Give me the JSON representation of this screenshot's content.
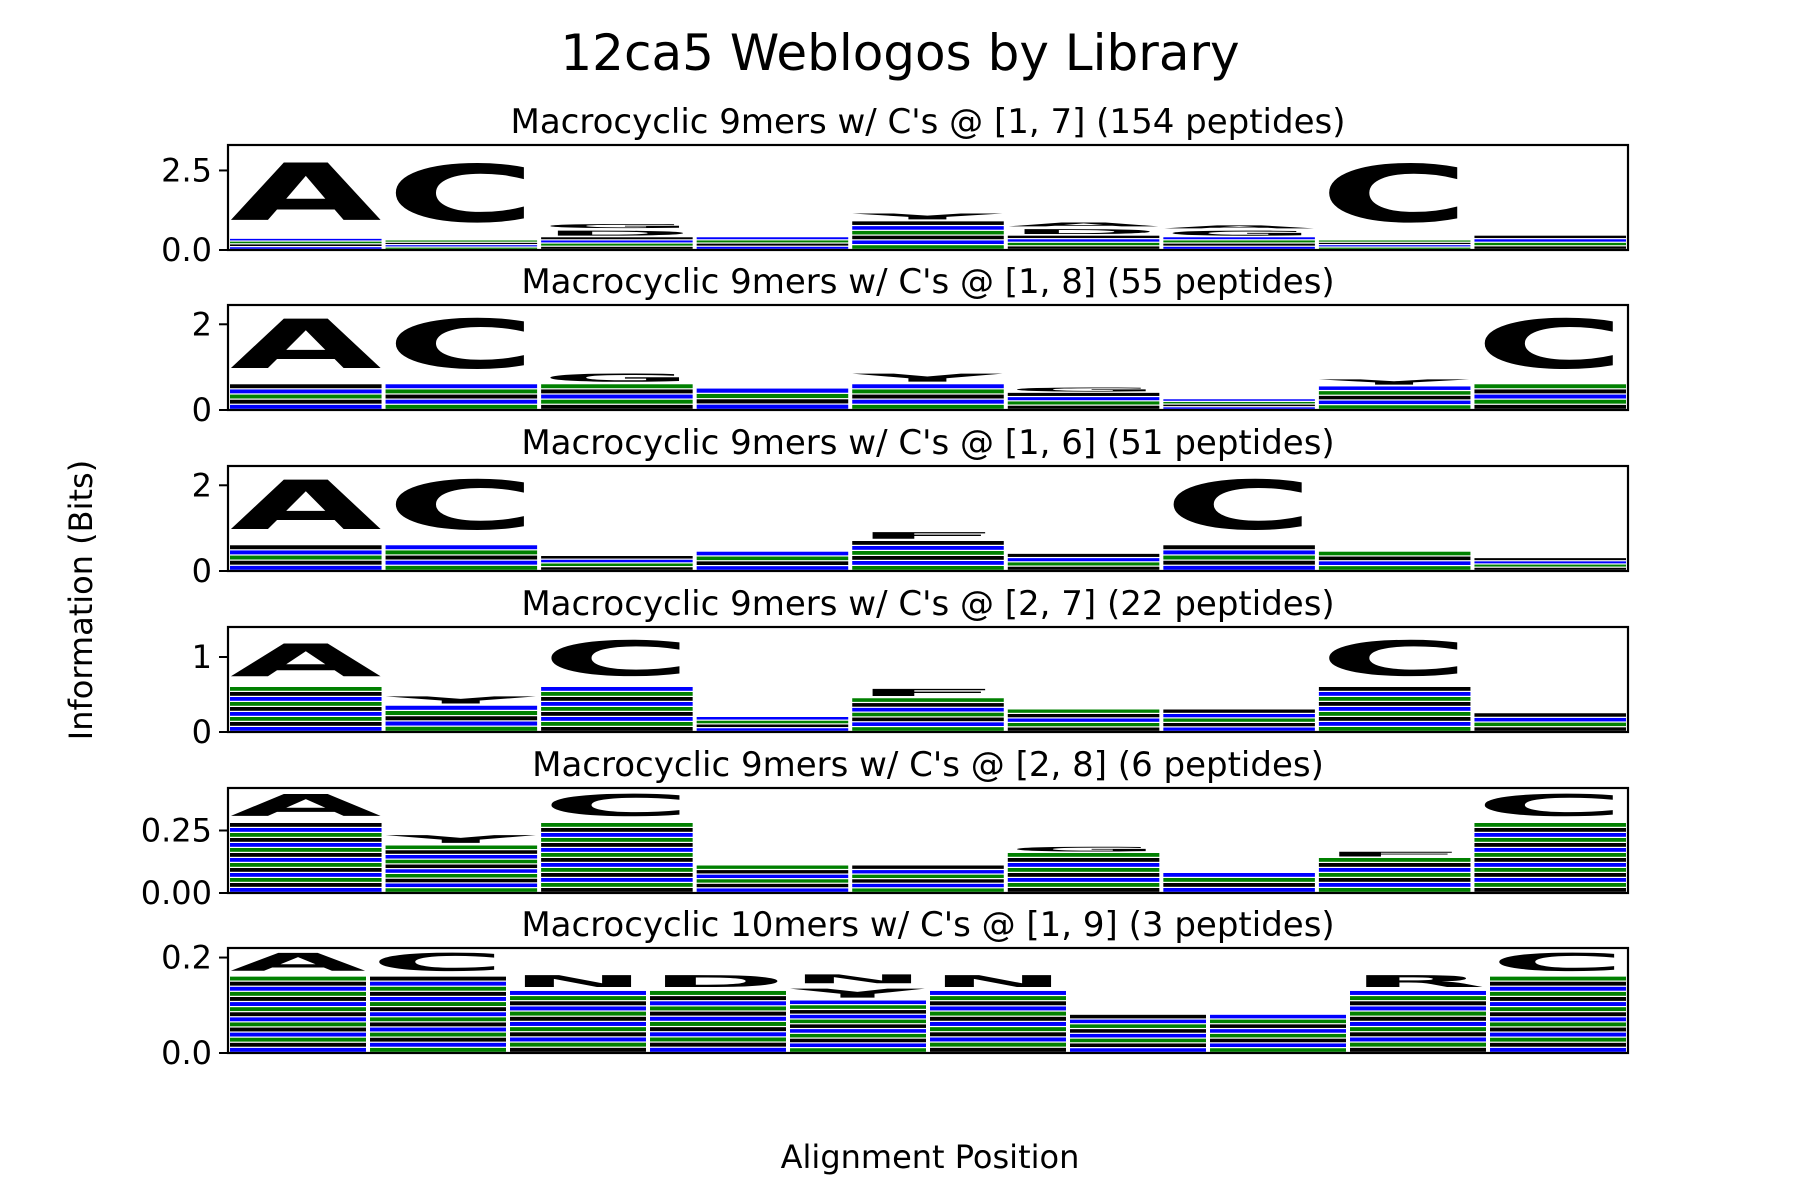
{
  "figure": {
    "title": "12ca5 Weblogos by Library",
    "xlabel": "Alignment Position",
    "ylabel": "Information (Bits)"
  },
  "colors": {
    "acidic": "#008000",
    "basic": "#0000ff",
    "hydrophobic": "#000000"
  },
  "chart_data": [
    {
      "type": "logo",
      "title": "Macrocyclic 9mers w/ C's @ [1, 7] (154 peptides)",
      "ylim": [
        0,
        3.3
      ],
      "yticks": [
        "0.0",
        "2.5"
      ],
      "ytick_values": [
        0,
        2.5
      ],
      "positions": [
        {
          "letters": [
            {
              "letter": "A",
              "height": 2.9,
              "color": "#008000"
            }
          ],
          "base": 0.35
        },
        {
          "letters": [
            {
              "letter": "C",
              "height": 2.9,
              "color": "#000000"
            }
          ],
          "base": 0.3
        },
        {
          "letters": [
            {
              "letter": "D",
              "height": 0.25,
              "color": "#0000ff"
            },
            {
              "letter": "G",
              "height": 0.2,
              "color": "#008000"
            }
          ],
          "base": 0.4
        },
        {
          "letters": [],
          "base": 0.4
        },
        {
          "letters": [
            {
              "letter": "Y",
              "height": 0.3,
              "color": "#000000"
            }
          ],
          "base": 0.9
        },
        {
          "letters": [
            {
              "letter": "D",
              "height": 0.25,
              "color": "#0000ff"
            },
            {
              "letter": "A",
              "height": 0.2,
              "color": "#008000"
            }
          ],
          "base": 0.45
        },
        {
          "letters": [
            {
              "letter": "G",
              "height": 0.25,
              "color": "#008000"
            },
            {
              "letter": "A",
              "height": 0.15,
              "color": "#008000"
            }
          ],
          "base": 0.4
        },
        {
          "letters": [
            {
              "letter": "C",
              "height": 2.9,
              "color": "#000000"
            }
          ],
          "base": 0.3
        },
        {
          "letters": [],
          "base": 0.45
        }
      ]
    },
    {
      "type": "logo",
      "title": "Macrocyclic 9mers w/ C's @ [1, 8] (55 peptides)",
      "ylim": [
        0,
        2.45
      ],
      "yticks": [
        "0",
        "2"
      ],
      "ytick_values": [
        0,
        2
      ],
      "positions": [
        {
          "letters": [
            {
              "letter": "A",
              "height": 1.85,
              "color": "#008000"
            }
          ],
          "base": 0.6
        },
        {
          "letters": [
            {
              "letter": "C",
              "height": 1.85,
              "color": "#000000"
            }
          ],
          "base": 0.6
        },
        {
          "letters": [
            {
              "letter": "G",
              "height": 0.3,
              "color": "#008000"
            }
          ],
          "base": 0.6
        },
        {
          "letters": [],
          "base": 0.5
        },
        {
          "letters": [
            {
              "letter": "Y",
              "height": 0.3,
              "color": "#000000"
            }
          ],
          "base": 0.6
        },
        {
          "letters": [
            {
              "letter": "G",
              "height": 0.15,
              "color": "#008000"
            }
          ],
          "base": 0.4
        },
        {
          "letters": [],
          "base": 0.25
        },
        {
          "letters": [
            {
              "letter": "Y",
              "height": 0.2,
              "color": "#000000"
            }
          ],
          "base": 0.55
        },
        {
          "letters": [
            {
              "letter": "C",
              "height": 1.85,
              "color": "#000000"
            }
          ],
          "base": 0.6
        }
      ]
    },
    {
      "type": "logo",
      "title": "Macrocyclic 9mers w/ C's @ [1, 6] (51 peptides)",
      "ylim": [
        0,
        2.45
      ],
      "yticks": [
        "0",
        "2"
      ],
      "ytick_values": [
        0,
        2
      ],
      "positions": [
        {
          "letters": [
            {
              "letter": "A",
              "height": 1.85,
              "color": "#008000"
            }
          ],
          "base": 0.6
        },
        {
          "letters": [
            {
              "letter": "C",
              "height": 1.85,
              "color": "#000000"
            }
          ],
          "base": 0.6
        },
        {
          "letters": [],
          "base": 0.35
        },
        {
          "letters": [],
          "base": 0.45
        },
        {
          "letters": [
            {
              "letter": "F",
              "height": 0.25,
              "color": "#000000"
            }
          ],
          "base": 0.7
        },
        {
          "letters": [],
          "base": 0.4
        },
        {
          "letters": [
            {
              "letter": "C",
              "height": 1.85,
              "color": "#000000"
            }
          ],
          "base": 0.6
        },
        {
          "letters": [],
          "base": 0.45
        },
        {
          "letters": [],
          "base": 0.3
        }
      ]
    },
    {
      "type": "logo",
      "title": "Macrocyclic 9mers w/ C's @ [2, 7] (22 peptides)",
      "ylim": [
        0,
        1.4
      ],
      "yticks": [
        "0",
        "1"
      ],
      "ytick_values": [
        0,
        1
      ],
      "positions": [
        {
          "letters": [
            {
              "letter": "A",
              "height": 0.7,
              "color": "#008000"
            }
          ],
          "base": 0.6
        },
        {
          "letters": [
            {
              "letter": "Y",
              "height": 0.15,
              "color": "#000000"
            }
          ],
          "base": 0.35
        },
        {
          "letters": [
            {
              "letter": "C",
              "height": 0.75,
              "color": "#000000"
            }
          ],
          "base": 0.6
        },
        {
          "letters": [],
          "base": 0.2
        },
        {
          "letters": [
            {
              "letter": "F",
              "height": 0.15,
              "color": "#000000"
            }
          ],
          "base": 0.45
        },
        {
          "letters": [],
          "base": 0.3
        },
        {
          "letters": [],
          "base": 0.3
        },
        {
          "letters": [
            {
              "letter": "C",
              "height": 0.75,
              "color": "#000000"
            }
          ],
          "base": 0.6
        },
        {
          "letters": [],
          "base": 0.25
        }
      ]
    },
    {
      "type": "logo",
      "title": "Macrocyclic 9mers w/ C's @ [2, 8] (6 peptides)",
      "ylim": [
        0,
        0.42
      ],
      "yticks": [
        "0.00",
        "0.25"
      ],
      "ytick_values": [
        0,
        0.25
      ],
      "positions": [
        {
          "letters": [
            {
              "letter": "A",
              "height": 0.14,
              "color": "#008000"
            }
          ],
          "base": 0.28
        },
        {
          "letters": [
            {
              "letter": "Y",
              "height": 0.05,
              "color": "#000000"
            }
          ],
          "base": 0.19
        },
        {
          "letters": [
            {
              "letter": "C",
              "height": 0.14,
              "color": "#000000"
            }
          ],
          "base": 0.28
        },
        {
          "letters": [],
          "base": 0.11
        },
        {
          "letters": [],
          "base": 0.11
        },
        {
          "letters": [
            {
              "letter": "G",
              "height": 0.03,
              "color": "#008000"
            }
          ],
          "base": 0.16
        },
        {
          "letters": [],
          "base": 0.08
        },
        {
          "letters": [
            {
              "letter": "F",
              "height": 0.03,
              "color": "#000000"
            }
          ],
          "base": 0.14
        },
        {
          "letters": [
            {
              "letter": "C",
              "height": 0.14,
              "color": "#000000"
            }
          ],
          "base": 0.28
        }
      ]
    },
    {
      "type": "logo",
      "title": "Macrocyclic 10mers w/ C's @ [1, 9] (3 peptides)",
      "ylim": [
        0,
        0.22
      ],
      "yticks": [
        "0.0",
        "0.2"
      ],
      "ytick_values": [
        0,
        0.2
      ],
      "positions": [
        {
          "letters": [
            {
              "letter": "A",
              "height": 0.06,
              "color": "#008000"
            }
          ],
          "base": 0.16
        },
        {
          "letters": [
            {
              "letter": "C",
              "height": 0.06,
              "color": "#000000"
            }
          ],
          "base": 0.16
        },
        {
          "letters": [
            {
              "letter": "N",
              "height": 0.04,
              "color": "#0000ff"
            }
          ],
          "base": 0.13
        },
        {
          "letters": [
            {
              "letter": "D",
              "height": 0.04,
              "color": "#0000ff"
            }
          ],
          "base": 0.13
        },
        {
          "letters": [
            {
              "letter": "Y",
              "height": 0.03,
              "color": "#000000"
            },
            {
              "letter": "N",
              "height": 0.03,
              "color": "#0000ff"
            }
          ],
          "base": 0.11
        },
        {
          "letters": [
            {
              "letter": "N",
              "height": 0.04,
              "color": "#0000ff"
            }
          ],
          "base": 0.13
        },
        {
          "letters": [],
          "base": 0.08
        },
        {
          "letters": [],
          "base": 0.08
        },
        {
          "letters": [
            {
              "letter": "R",
              "height": 0.04,
              "color": "#0000ff"
            }
          ],
          "base": 0.13
        },
        {
          "letters": [
            {
              "letter": "C",
              "height": 0.06,
              "color": "#000000"
            }
          ],
          "base": 0.16
        }
      ]
    }
  ]
}
